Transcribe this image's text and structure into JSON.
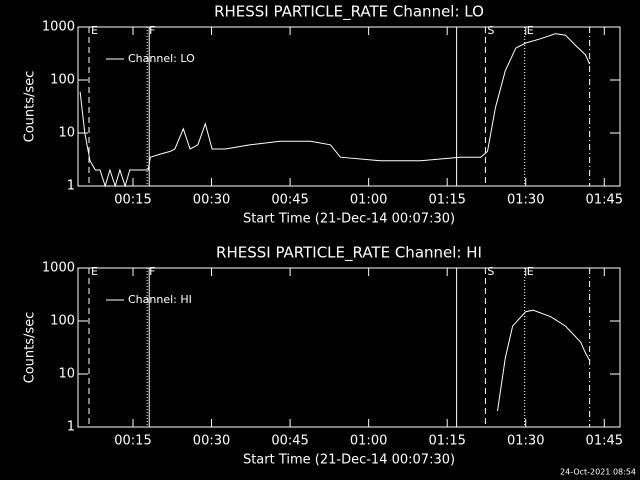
{
  "chart_data": [
    {
      "type": "line",
      "title": "RHESSI PARTICLE_RATE Channel: LO",
      "x_label": "Start Time (21-Dec-14 00:07:30)",
      "y_label": "Counts/sec",
      "log_y": true,
      "xlim": [
        4.5,
        108
      ],
      "ylim": [
        1,
        1000
      ],
      "xticks": [
        {
          "value": 15,
          "label": "00:15"
        },
        {
          "value": 30,
          "label": "00:30"
        },
        {
          "value": 45,
          "label": "00:45"
        },
        {
          "value": 60,
          "label": "01:00"
        },
        {
          "value": 75,
          "label": "01:15"
        },
        {
          "value": 90,
          "label": "01:30"
        },
        {
          "value": 105,
          "label": "01:45"
        }
      ],
      "yticks": [
        1,
        10,
        100,
        1000
      ],
      "markers": [
        {
          "x": 6.6,
          "label": "E",
          "style": "dashed"
        },
        {
          "x": 17.7,
          "label": "F",
          "style": "dotted"
        },
        {
          "x": 18.1,
          "style": "solid"
        },
        {
          "x": 76.8,
          "style": "solid"
        },
        {
          "x": 82.3,
          "label": "S",
          "style": "dashed"
        },
        {
          "x": 89.8,
          "label": "E",
          "style": "dotted"
        },
        {
          "x": 102.2,
          "style": "dashdot"
        }
      ],
      "series": [
        {
          "name": "Channel: LO",
          "color": "#ffffff",
          "x": [
            4.9,
            5.8,
            6.8,
            7.8,
            8.7,
            9.7,
            10.6,
            11.6,
            12.5,
            13.5,
            14.4,
            15.4,
            16.4,
            17.9,
            18.3,
            20.2,
            22.1,
            23.0,
            24.6,
            25.9,
            27.4,
            28.8,
            30.1,
            32.6,
            37.4,
            43.1,
            48.9,
            52.7,
            54.6,
            62.2,
            69.9,
            77.5,
            81.4,
            82.7,
            84.2,
            86.1,
            88.1,
            90.0,
            92.8,
            95.7,
            97.6,
            99.5,
            101.4,
            102.2
          ],
          "values": [
            60,
            10,
            3,
            2,
            2,
            1,
            2,
            1,
            2,
            1,
            2,
            2,
            2,
            2,
            3.5,
            4,
            4.5,
            5,
            12,
            5,
            6,
            15,
            5,
            5,
            6,
            7,
            7,
            6,
            3.5,
            3,
            3,
            3.5,
            3.5,
            4.5,
            30,
            150,
            400,
            500,
            600,
            750,
            700,
            450,
            300,
            200
          ]
        }
      ]
    },
    {
      "type": "line",
      "title": "RHESSI PARTICLE_RATE Channel: HI",
      "x_label": "Start Time (21-Dec-14 00:07:30)",
      "y_label": "Counts/sec",
      "log_y": true,
      "xlim": [
        4.5,
        108
      ],
      "ylim": [
        1,
        1000
      ],
      "xticks": [
        {
          "value": 15,
          "label": "00:15"
        },
        {
          "value": 30,
          "label": "00:30"
        },
        {
          "value": 45,
          "label": "00:45"
        },
        {
          "value": 60,
          "label": "01:00"
        },
        {
          "value": 75,
          "label": "01:15"
        },
        {
          "value": 90,
          "label": "01:30"
        },
        {
          "value": 105,
          "label": "01:45"
        }
      ],
      "yticks": [
        1,
        10,
        100,
        1000
      ],
      "markers": [
        {
          "x": 6.6,
          "label": "E",
          "style": "dashed"
        },
        {
          "x": 17.7,
          "label": "F",
          "style": "dotted"
        },
        {
          "x": 18.1,
          "style": "solid"
        },
        {
          "x": 76.8,
          "style": "solid"
        },
        {
          "x": 82.3,
          "label": "S",
          "style": "dashed"
        },
        {
          "x": 89.8,
          "label": "E",
          "style": "dotted"
        },
        {
          "x": 102.2,
          "style": "dashdot"
        }
      ],
      "series": [
        {
          "name": "Channel: HI",
          "color": "#ffffff",
          "x": [
            84.6,
            86.1,
            87.5,
            90.0,
            91.4,
            94.8,
            97.6,
            100.5,
            101.4,
            102.2
          ],
          "values": [
            2,
            20,
            80,
            150,
            160,
            120,
            80,
            40,
            25,
            18
          ]
        }
      ]
    }
  ],
  "footer": "24-Oct-2021 08:54"
}
